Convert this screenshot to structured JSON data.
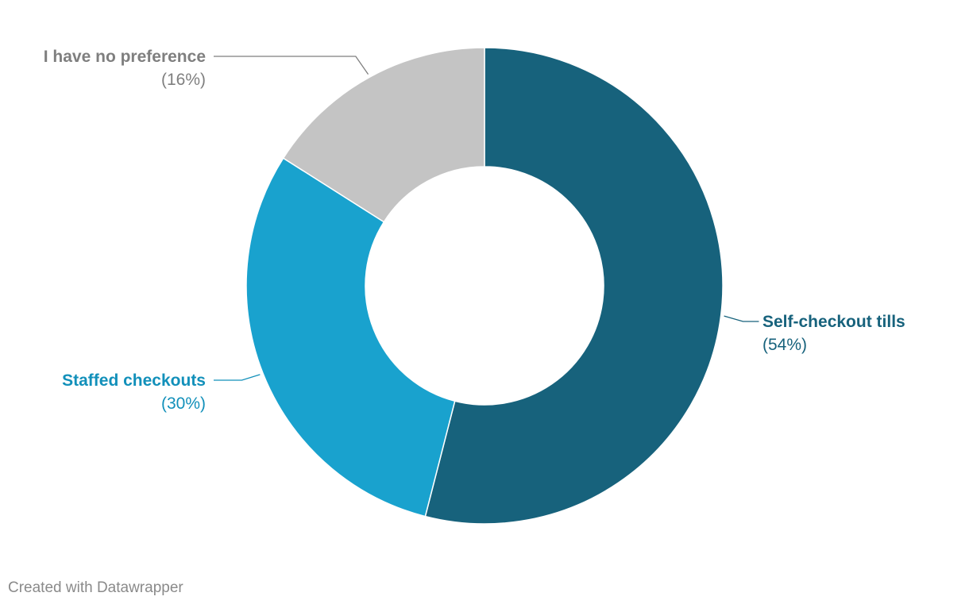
{
  "chart_data": {
    "type": "pie",
    "categories": [
      "Self-checkout tills",
      "Staffed checkouts",
      "I have no preference"
    ],
    "values": [
      54,
      30,
      16
    ],
    "value_labels": [
      "(54%)",
      "(30%)",
      "(16%)"
    ],
    "colors": [
      "#17627c",
      "#19a2ce",
      "#c4c4c4"
    ],
    "label_colors": [
      "#17627c",
      "#1290ba",
      "#7f7f7f"
    ],
    "donut": true,
    "start": "12 o'clock",
    "direction": "clockwise",
    "legend": "none (direct labels)"
  },
  "footer": {
    "credit": "Created with Datawrapper"
  }
}
